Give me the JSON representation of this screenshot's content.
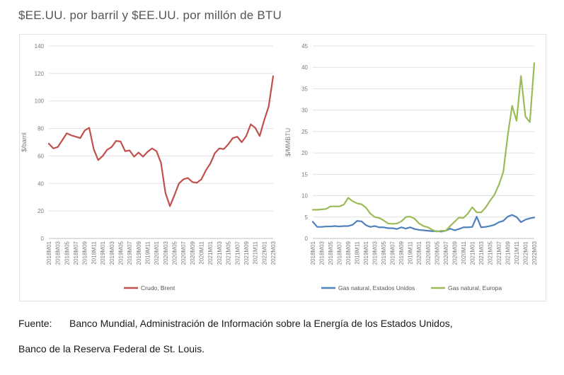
{
  "header": {
    "title": "$EE.UU. por barril y $EE.UU. por millón de BTU"
  },
  "source": {
    "label": "Fuente:",
    "line1": "Banco Mundial, Administración de Información sobre la Energía de los Estados Unidos,",
    "line2": "Banco de la Reserva Federal de St. Louis."
  },
  "colors": {
    "brent": "#c0504d",
    "gas_us": "#4f81bd",
    "gas_eu": "#9bbb59",
    "grid": "#e1e1e1",
    "axis": "#bfbfbf"
  },
  "chart_data": [
    {
      "type": "line",
      "title": "",
      "xlabel": "",
      "ylabel": "$/barril",
      "ylim": [
        0,
        140
      ],
      "yticks": [
        "0",
        "20",
        "40",
        "60",
        "80",
        "100",
        "120",
        "140"
      ],
      "grid": "horizontal",
      "legend": "bottom",
      "x": [
        "2018M01",
        "2018M02",
        "2018M03",
        "2018M04",
        "2018M05",
        "2018M06",
        "2018M07",
        "2018M08",
        "2018M09",
        "2018M10",
        "2018M11",
        "2018M12",
        "2019M01",
        "2019M02",
        "2019M03",
        "2019M04",
        "2019M05",
        "2019M06",
        "2019M07",
        "2019M08",
        "2019M09",
        "2019M10",
        "2019M11",
        "2019M12",
        "2020M01",
        "2020M02",
        "2020M03",
        "2020M04",
        "2020M05",
        "2020M06",
        "2020M07",
        "2020M08",
        "2020M09",
        "2020M10",
        "2020M11",
        "2020M12",
        "2021M01",
        "2021M02",
        "2021M03",
        "2021M04",
        "2021M05",
        "2021M06",
        "2021M07",
        "2021M08",
        "2021M09",
        "2021M10",
        "2021M11",
        "2021M12",
        "2022M01",
        "2022M02",
        "2022M03"
      ],
      "xticks": [
        "2018M01",
        "2018M03",
        "2018M05",
        "2018M07",
        "2018M09",
        "2018M11",
        "2019M01",
        "2019M03",
        "2019M05",
        "2019M07",
        "2019M09",
        "2019M11",
        "2020M01",
        "2020M03",
        "2020M05",
        "2020M07",
        "2020M09",
        "2020M11",
        "2021M01",
        "2021M03",
        "2021M05",
        "2021M07",
        "2021M09",
        "2021M11",
        "2022M01",
        "2022M03"
      ],
      "series": [
        {
          "name": "Crudo, Brent",
          "values": [
            69,
            65.5,
            66.5,
            71.5,
            76.5,
            75,
            74,
            73,
            78.5,
            80.5,
            65,
            57,
            60,
            64.5,
            66.5,
            71,
            70.5,
            63.5,
            64,
            59.5,
            62.5,
            59.5,
            63,
            65.5,
            63.5,
            55,
            33,
            23.5,
            31.5,
            40,
            43,
            44,
            41,
            40.5,
            43,
            49.5,
            54.5,
            62,
            65.5,
            65,
            68.5,
            73,
            74,
            70,
            74.5,
            83,
            80.5,
            74.5,
            86,
            96,
            118
          ]
        }
      ]
    },
    {
      "type": "line",
      "title": "",
      "xlabel": "",
      "ylabel": "$/MMBTU",
      "ylim": [
        0,
        45
      ],
      "yticks": [
        "0",
        "5",
        "10",
        "15",
        "20",
        "25",
        "30",
        "35",
        "40",
        "45"
      ],
      "grid": "horizontal",
      "legend": "bottom",
      "x": [
        "2018M01",
        "2018M02",
        "2018M03",
        "2018M04",
        "2018M05",
        "2018M06",
        "2018M07",
        "2018M08",
        "2018M09",
        "2018M10",
        "2018M11",
        "2018M12",
        "2019M01",
        "2019M02",
        "2019M03",
        "2019M04",
        "2019M05",
        "2019M06",
        "2019M07",
        "2019M08",
        "2019M09",
        "2019M10",
        "2019M11",
        "2019M12",
        "2020M01",
        "2020M02",
        "2020M03",
        "2020M04",
        "2020M05",
        "2020M06",
        "2020M07",
        "2020M08",
        "2020M09",
        "2020M10",
        "2020M11",
        "2020M12",
        "2021M01",
        "2021M02",
        "2021M03",
        "2021M04",
        "2021M05",
        "2021M06",
        "2021M07",
        "2021M08",
        "2021M09",
        "2021M10",
        "2021M11",
        "2021M12",
        "2022M01",
        "2022M02",
        "2022M03"
      ],
      "xticks": [
        "2018M01",
        "2018M03",
        "2018M05",
        "2018M07",
        "2018M09",
        "2018M11",
        "2019M01",
        "2019M03",
        "2019M05",
        "2019M07",
        "2019M09",
        "2019M11",
        "2020M01",
        "2020M03",
        "2020M05",
        "2020M07",
        "2020M09",
        "2020M11",
        "2021M01",
        "2021M03",
        "2021M05",
        "2021M07",
        "2021M09",
        "2021M11",
        "2022M01",
        "2022M03"
      ],
      "series": [
        {
          "name": "Gas natural, Estados Unidos",
          "values": [
            3.9,
            2.7,
            2.7,
            2.8,
            2.8,
            2.9,
            2.8,
            2.9,
            2.9,
            3.2,
            4.1,
            4.0,
            3.1,
            2.7,
            2.9,
            2.6,
            2.6,
            2.4,
            2.4,
            2.2,
            2.6,
            2.3,
            2.6,
            2.2,
            2.0,
            1.9,
            1.8,
            1.7,
            1.7,
            1.6,
            1.8,
            2.3,
            1.9,
            2.2,
            2.6,
            2.6,
            2.7,
            5.1,
            2.6,
            2.7,
            2.9,
            3.2,
            3.8,
            4.1,
            5.1,
            5.5,
            5.0,
            3.8,
            4.4,
            4.7,
            4.9
          ]
        },
        {
          "name": "Gas natural, Europa",
          "values": [
            6.7,
            6.7,
            6.8,
            6.9,
            7.5,
            7.5,
            7.5,
            7.9,
            9.5,
            8.7,
            8.2,
            8.0,
            7.2,
            5.8,
            5.0,
            4.8,
            4.2,
            3.5,
            3.4,
            3.5,
            4.0,
            5.0,
            5.1,
            4.6,
            3.5,
            2.9,
            2.6,
            2.0,
            1.6,
            1.8,
            1.8,
            2.9,
            3.9,
            4.9,
            4.8,
            5.8,
            7.3,
            6.1,
            6.1,
            7.2,
            8.8,
            10.2,
            12.5,
            15.5,
            24.0,
            31.0,
            27.5,
            38.0,
            28.5,
            27.2,
            41.0
          ]
        }
      ]
    }
  ]
}
